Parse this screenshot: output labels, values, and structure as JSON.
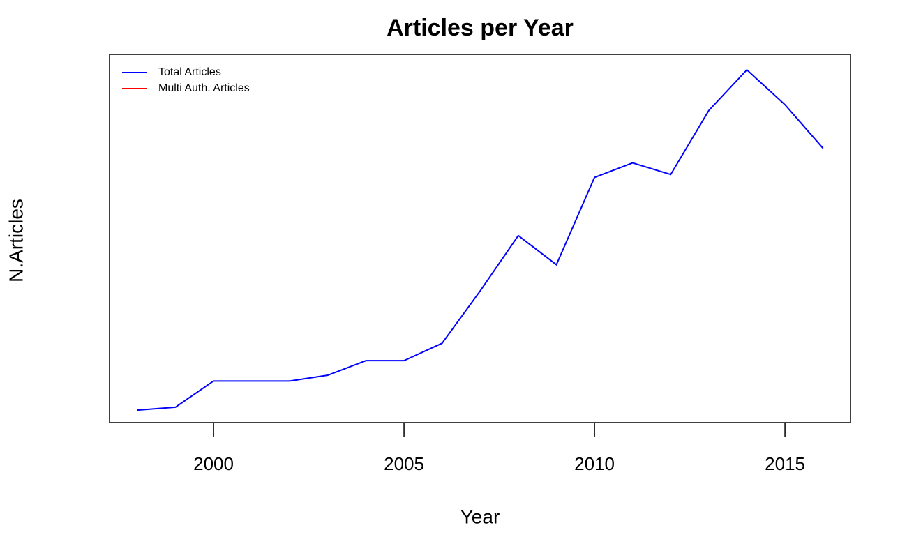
{
  "chart_data": {
    "type": "line",
    "title": "Articles per Year",
    "x_label": "Year",
    "y_label": "N.Articles",
    "x": [
      1998,
      1999,
      2000,
      2001,
      2002,
      2003,
      2004,
      2005,
      2006,
      2007,
      2008,
      2009,
      2010,
      2011,
      2012,
      2013,
      2014,
      2015,
      2016
    ],
    "series": [
      {
        "name": "Total Articles",
        "color": "#0000ff",
        "values": [
          1,
          2,
          11,
          11,
          11,
          13,
          18,
          18,
          24,
          42,
          61,
          51,
          81,
          86,
          82,
          104,
          118,
          106,
          91
        ]
      },
      {
        "name": "Multi Auth. Articles",
        "color": "#ff0000",
        "values": [
          null,
          null,
          null,
          null,
          null,
          null,
          null,
          null,
          null,
          null,
          null,
          null,
          null,
          null,
          null,
          null,
          null,
          null,
          null
        ]
      }
    ],
    "xlim": [
      1997.27,
      2016.72
    ],
    "xticks": [
      2000,
      2005,
      2010,
      2015
    ],
    "ylim": [
      -3.3,
      123.3
    ],
    "legend": "top-left"
  }
}
